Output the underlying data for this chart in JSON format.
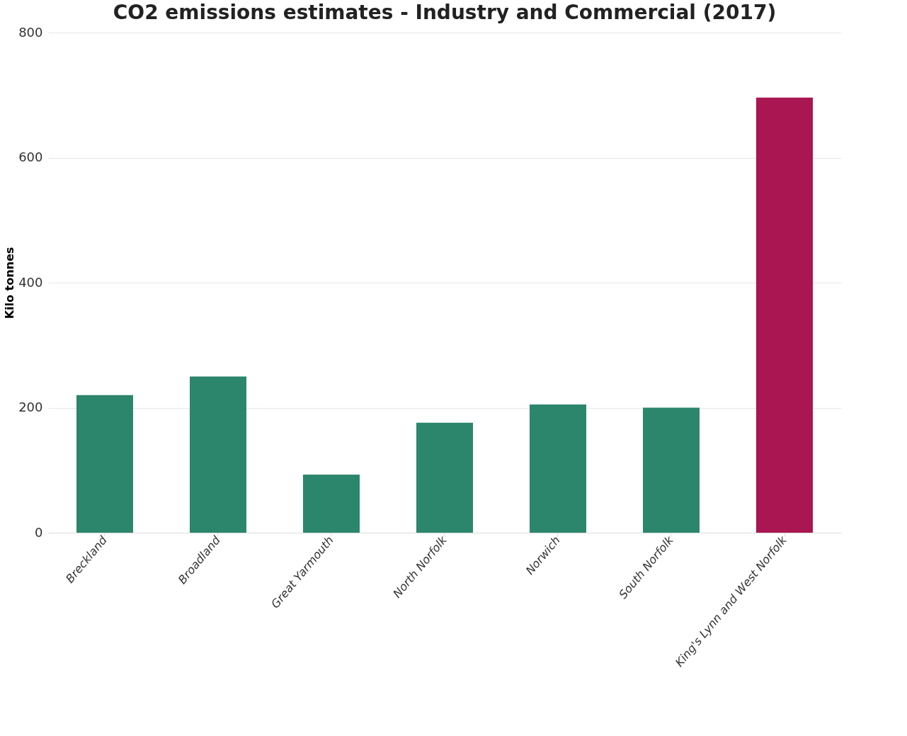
{
  "chart_data": {
    "type": "bar",
    "title": "CO2 emissions estimates - Industry and Commercial (2017)",
    "ylabel": "Kilo tonnes",
    "categories": [
      "Breckland",
      "Broadland",
      "Great Yarmouth",
      "North Norfolk",
      "Norwich",
      "South Norfolk",
      "King's Lynn and West Norfolk"
    ],
    "values": [
      220,
      250,
      93,
      176,
      205,
      200,
      696
    ],
    "colors": [
      "#2c866c",
      "#2c866c",
      "#2c866c",
      "#2c866c",
      "#2c866c",
      "#2c866c",
      "#a91651"
    ],
    "ylim": [
      0,
      800
    ],
    "yticks": [
      0,
      200,
      400,
      600,
      800
    ],
    "grid": "y"
  }
}
